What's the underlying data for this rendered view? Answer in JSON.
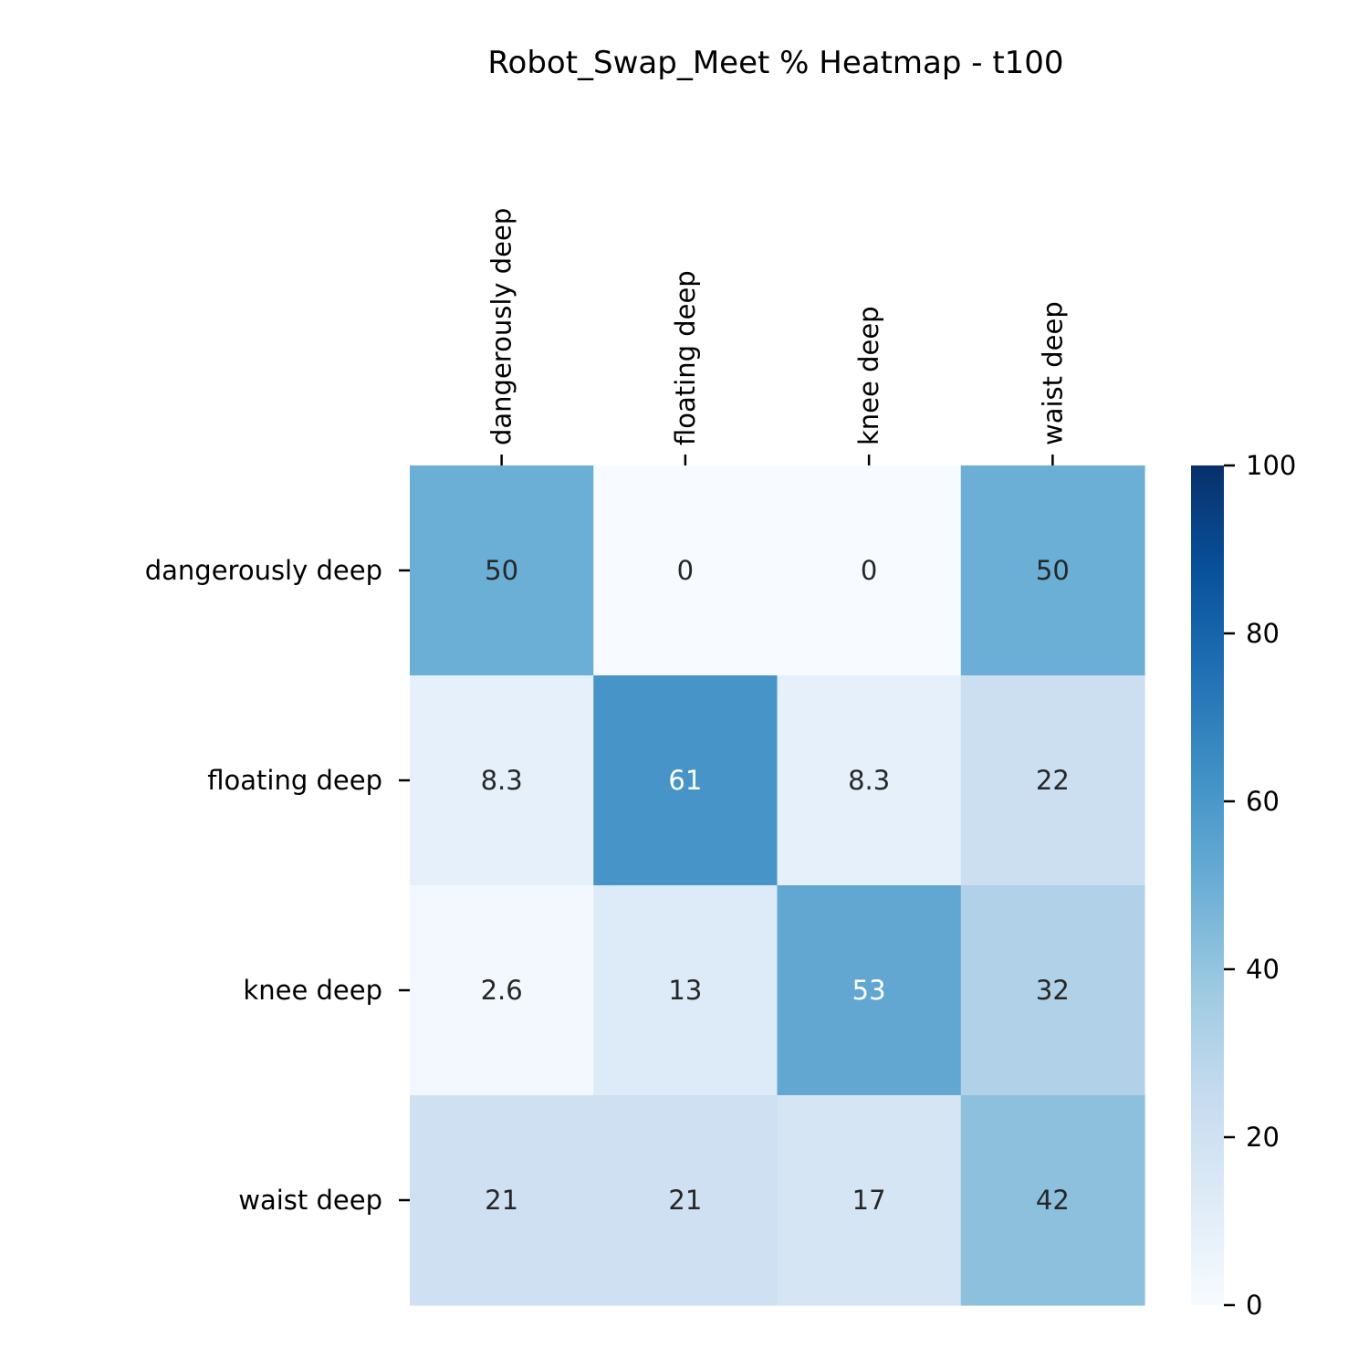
{
  "chart_data": {
    "type": "heatmap",
    "title": "Robot_Swap_Meet % Heatmap - t100",
    "xlabel": "",
    "ylabel": "",
    "x_categories": [
      "dangerously deep",
      "floating deep",
      "knee deep",
      "waist deep"
    ],
    "y_categories": [
      "dangerously deep",
      "floating deep",
      "knee deep",
      "waist deep"
    ],
    "x_tick_position": "top",
    "values": [
      [
        50,
        0,
        0,
        50
      ],
      [
        8.3,
        61,
        8.3,
        22
      ],
      [
        2.6,
        13,
        53,
        32
      ],
      [
        21,
        21,
        17,
        42
      ]
    ],
    "annotations": [
      [
        "50",
        "0",
        "0",
        "50"
      ],
      [
        "8.3",
        "61",
        "8.3",
        "22"
      ],
      [
        "2.6",
        "13",
        "53",
        "32"
      ],
      [
        "21",
        "21",
        "17",
        "42"
      ]
    ],
    "colormap": "Blues",
    "vmin": 0,
    "vmax": 100,
    "colorbar": {
      "ticks": [
        "0",
        "20",
        "40",
        "60",
        "80",
        "100"
      ],
      "location": "right"
    },
    "colors": {
      "cmap_stops": [
        "#f7fbff",
        "#deebf7",
        "#c6dbef",
        "#9ecae1",
        "#6baed6",
        "#4292c6",
        "#2171b5",
        "#08519c",
        "#08306b"
      ],
      "dark_text": "#262626",
      "light_text": "#ffffff"
    }
  }
}
